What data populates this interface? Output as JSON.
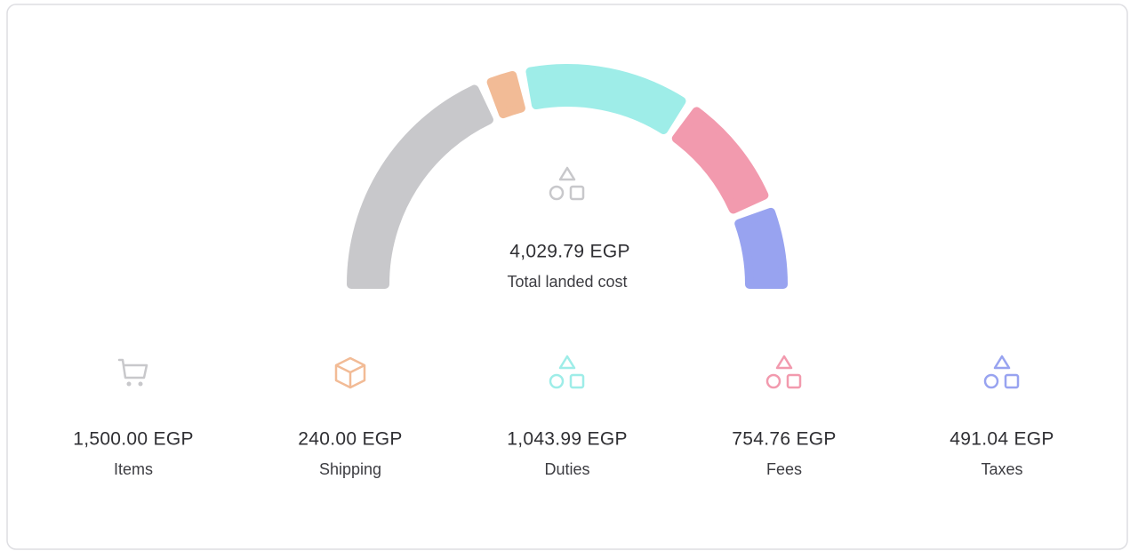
{
  "chart_data": {
    "type": "half-donut",
    "total": {
      "value": 4029.79,
      "label": "4,029.79 EGP"
    },
    "total_caption": "Total landed cost",
    "categories": [
      "Items",
      "Shipping",
      "Duties",
      "Fees",
      "Taxes"
    ],
    "values": [
      1500,
      240,
      1043.99,
      754.76,
      491.04
    ],
    "value_labels": [
      "1,500.00 EGP",
      "240.00 EGP",
      "1,043.99 EGP",
      "754.76 EGP",
      "491.04 EGP"
    ],
    "colors": [
      "#c8c8cb",
      "#f2bb96",
      "#9eede8",
      "#f29aae",
      "#98a3f0"
    ]
  }
}
